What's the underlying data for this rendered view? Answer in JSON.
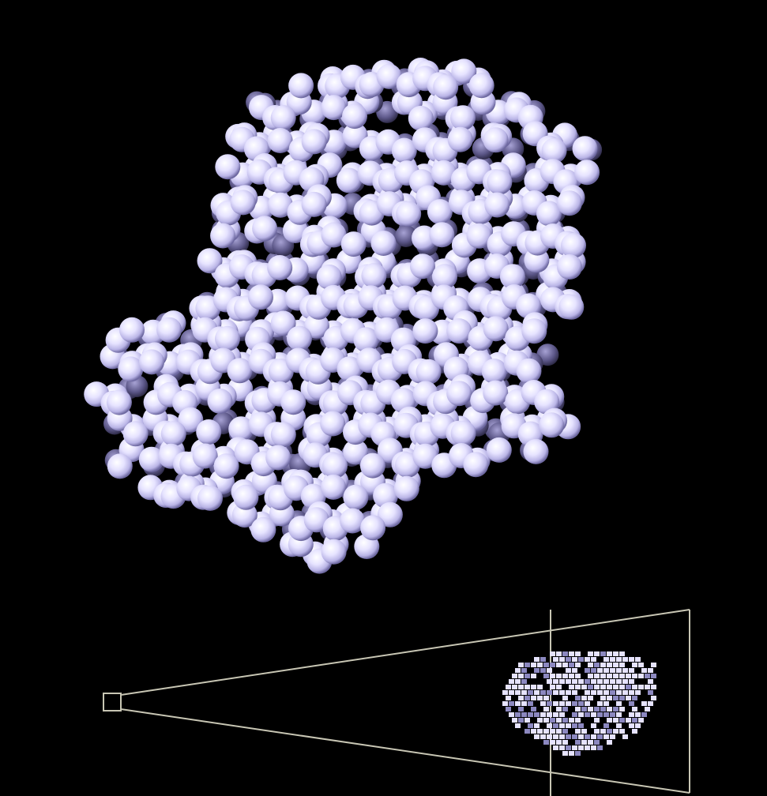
{
  "scene": {
    "background_color": "#000000",
    "atom_color": "#e6e3ff",
    "atom_shadow_color": "#4a4670",
    "frustum_color": "#c8c6b4"
  }
}
